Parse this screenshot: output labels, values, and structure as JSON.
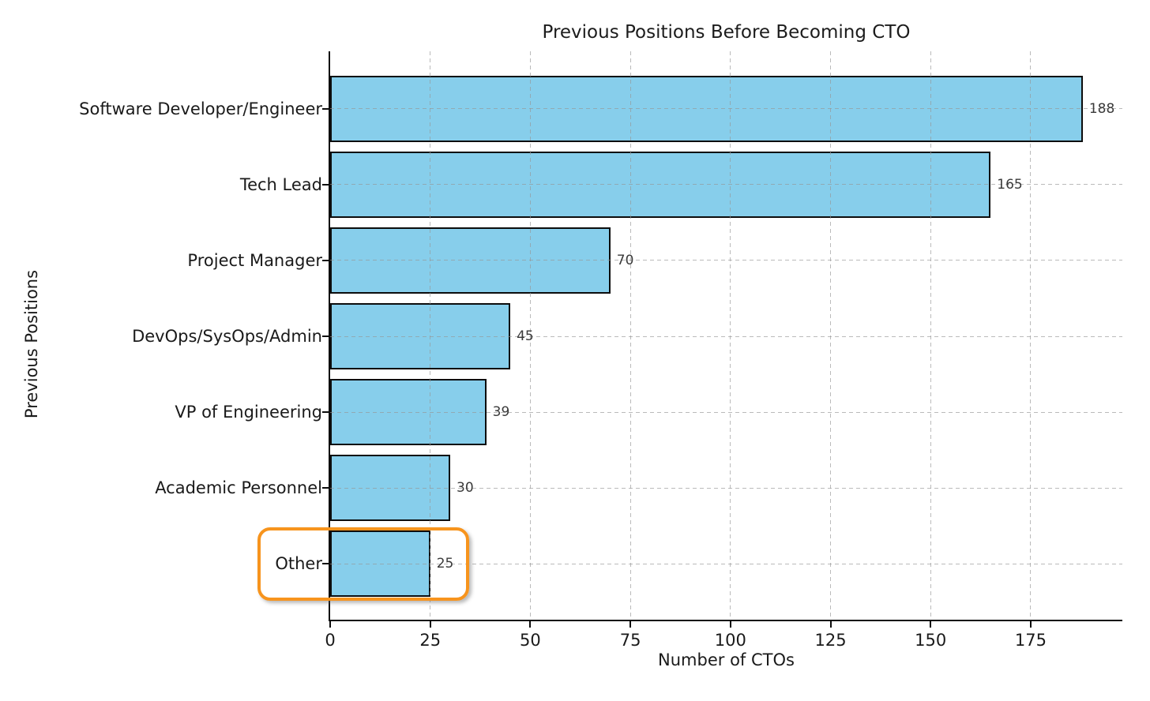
{
  "chart_data": {
    "type": "bar",
    "orientation": "horizontal",
    "title": "Previous Positions Before Becoming CTO",
    "xlabel": "Number of CTOs",
    "ylabel": "Previous Positions",
    "categories": [
      "Software Developer/Engineer",
      "Tech Lead",
      "Project Manager",
      "DevOps/SysOps/Admin",
      "VP of Engineering",
      "Academic Personnel",
      "Other"
    ],
    "values": [
      188,
      165,
      70,
      45,
      39,
      30,
      25
    ],
    "xticks": [
      0,
      25,
      50,
      75,
      100,
      125,
      150,
      175
    ],
    "xlim": [
      0,
      198
    ],
    "grid": "dashed gridlines on both axes, drawn over bars",
    "legend": "none",
    "bar_color": "#87CEEB",
    "bar_edge_color": "#0d0d0d",
    "value_label_color": "#3a3a3a",
    "highlight": {
      "category": "Other",
      "value": 25,
      "shape": "rounded rectangle outline around label, bar and value",
      "color": "#F7941D"
    }
  }
}
